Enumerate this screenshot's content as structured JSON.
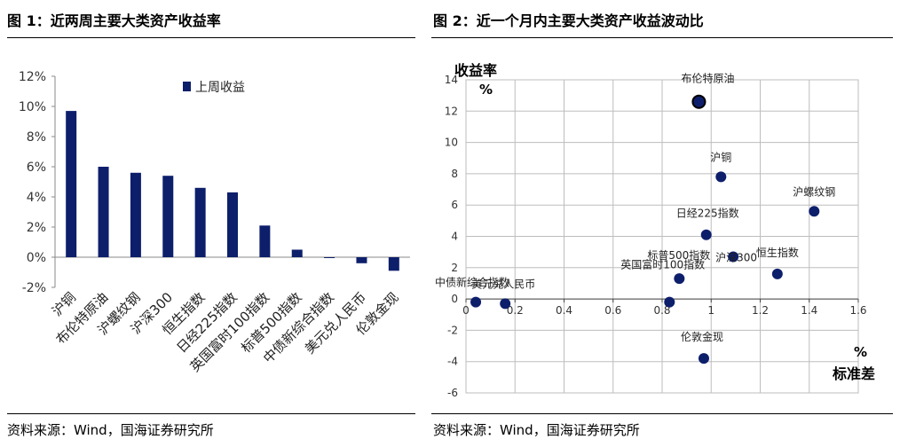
{
  "chart_data": [
    {
      "type": "bar",
      "title": "图 1：近两周主要大类资产收益率",
      "source": "资料来源：Wind，国海证券研究所",
      "categories": [
        "沪铜",
        "布伦特原油",
        "沪螺纹钢",
        "沪深300",
        "恒生指数",
        "日经225指数",
        "英国富时100指数",
        "标普500指数",
        "中债新综合指数",
        "美元兑人民币",
        "伦敦金现"
      ],
      "series": [
        {
          "name": "上周收益",
          "values": [
            9.7,
            6.0,
            5.6,
            5.4,
            4.6,
            4.3,
            2.1,
            0.5,
            0.0,
            -0.4,
            -0.9
          ]
        }
      ],
      "yticks": [
        "12%",
        "10%",
        "8%",
        "6%",
        "4%",
        "2%",
        "0%",
        "-2%"
      ],
      "ylim": [
        -2,
        12
      ],
      "bar_color": "#0d1f6b",
      "legend_position": "top"
    },
    {
      "type": "scatter",
      "title": "图 2：近一个月内主要大类资产收益波动比",
      "source": "资料来源：Wind，国海证券研究所",
      "ylabel": "收益率",
      "ylabel_unit": "%",
      "xlabel": "标准差",
      "xlabel_unit": "%",
      "xlim": [
        0,
        1.6
      ],
      "ylim": [
        -6,
        14
      ],
      "xticks": [
        "0",
        "0.2",
        "0.4",
        "0.6",
        "0.8",
        "1",
        "1.2",
        "1.4",
        "1.6"
      ],
      "yticks": [
        "14",
        "12",
        "10",
        "8",
        "6",
        "4",
        "2",
        "0",
        "-2",
        "-4",
        "-6"
      ],
      "grid": true,
      "point_color": "#0d1f6b",
      "points": [
        {
          "label": "布伦特原油",
          "x": 0.95,
          "y": 12.6
        },
        {
          "label": "沪铜",
          "x": 1.04,
          "y": 7.8
        },
        {
          "label": "沪螺纹钢",
          "x": 1.42,
          "y": 5.6
        },
        {
          "label": "日经225指数",
          "x": 0.98,
          "y": 4.1
        },
        {
          "label": "沪深300",
          "x": 1.09,
          "y": 2.7
        },
        {
          "label": "恒生指数",
          "x": 1.27,
          "y": 1.6
        },
        {
          "label": "标普500指数",
          "x": 0.87,
          "y": 1.3
        },
        {
          "label": "英国富时100指数",
          "x": 0.83,
          "y": -0.2
        },
        {
          "label": "中债新综合指数",
          "x": 0.04,
          "y": -0.2
        },
        {
          "label": "美元兑人民币",
          "x": 0.16,
          "y": -0.3
        },
        {
          "label": "伦敦金现",
          "x": 0.97,
          "y": -3.8
        }
      ]
    }
  ]
}
